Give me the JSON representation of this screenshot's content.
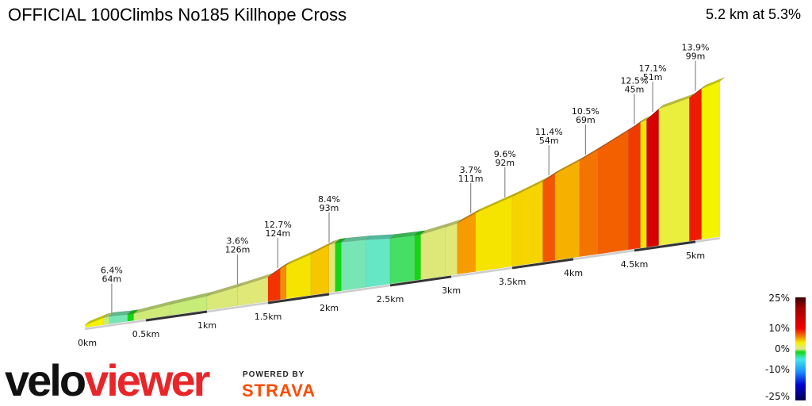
{
  "title": "OFFICIAL 100Climbs No185 Killhope Cross",
  "summary": "5.2 km at 5.3%",
  "logo": {
    "velo": "velo",
    "viewer": "viewer",
    "powered_by": "POWERED BY",
    "strava": "STRAVA"
  },
  "chart_data": {
    "type": "area",
    "total_km": 5.2,
    "avg_grade_pct": 5.3,
    "x_ticks": [
      "0km",
      "0.5km",
      "1km",
      "1.5km",
      "2km",
      "2.5km",
      "3km",
      "3.5km",
      "4km",
      "4.5km",
      "5km"
    ],
    "x_tick_values": [
      0,
      0.5,
      1,
      1.5,
      2,
      2.5,
      3,
      3.5,
      4,
      4.5,
      5
    ],
    "segments": [
      [
        0,
        0.15,
        6
      ],
      [
        0.15,
        0.2,
        2
      ],
      [
        0.2,
        0.35,
        -1
      ],
      [
        0.35,
        0.4,
        0
      ],
      [
        0.4,
        0.7,
        2.5
      ],
      [
        0.7,
        1.0,
        2
      ],
      [
        1.0,
        1.25,
        3.6
      ],
      [
        1.25,
        1.5,
        4
      ],
      [
        1.5,
        1.6,
        12.7
      ],
      [
        1.6,
        1.65,
        10
      ],
      [
        1.65,
        1.85,
        7
      ],
      [
        1.85,
        2.0,
        8.4
      ],
      [
        2.0,
        2.05,
        4
      ],
      [
        2.05,
        2.1,
        0
      ],
      [
        2.1,
        2.3,
        -1
      ],
      [
        2.3,
        2.5,
        -2
      ],
      [
        2.5,
        2.7,
        -0.5
      ],
      [
        2.7,
        2.75,
        0
      ],
      [
        2.75,
        2.95,
        3.7
      ],
      [
        2.95,
        3.05,
        4
      ],
      [
        3.05,
        3.2,
        9.6
      ],
      [
        3.2,
        3.5,
        7
      ],
      [
        3.5,
        3.75,
        8
      ],
      [
        3.75,
        3.85,
        11.4
      ],
      [
        3.85,
        4.05,
        9
      ],
      [
        4.05,
        4.2,
        10.5
      ],
      [
        4.2,
        4.45,
        11
      ],
      [
        4.45,
        4.55,
        12.5
      ],
      [
        4.55,
        4.6,
        7
      ],
      [
        4.6,
        4.7,
        17.1
      ],
      [
        4.7,
        4.95,
        5
      ],
      [
        4.95,
        5.05,
        13.9
      ],
      [
        5.05,
        5.2,
        6
      ]
    ],
    "annotations": [
      {
        "km": 0.22,
        "grade": "6.4%",
        "length": "64m"
      },
      {
        "km": 1.25,
        "grade": "3.6%",
        "length": "126m"
      },
      {
        "km": 1.58,
        "grade": "12.7%",
        "length": "124m"
      },
      {
        "km": 2.0,
        "grade": "8.4%",
        "length": "93m"
      },
      {
        "km": 3.16,
        "grade": "3.7%",
        "length": "111m"
      },
      {
        "km": 3.44,
        "grade": "9.6%",
        "length": "92m"
      },
      {
        "km": 3.8,
        "grade": "11.4%",
        "length": "54m"
      },
      {
        "km": 4.1,
        "grade": "10.5%",
        "length": "69m"
      },
      {
        "km": 4.5,
        "grade": "12.5%",
        "length": "45m"
      },
      {
        "km": 4.65,
        "grade": "17.1%",
        "length": "51m"
      },
      {
        "km": 5.0,
        "grade": "13.9%",
        "length": "99m"
      }
    ],
    "legend": {
      "labels": [
        "25%",
        "10%",
        "0%",
        "-10%",
        "-25%"
      ],
      "values": [
        25,
        10,
        0,
        -10,
        -25
      ],
      "colors": [
        "#5a0000",
        "#a00000",
        "#e00000",
        "#f26000",
        "#f7b400",
        "#f4f400",
        "#e0e890",
        "#15d615",
        "#40e8e8",
        "#1a90ff",
        "#0000c0",
        "#000060"
      ]
    }
  }
}
